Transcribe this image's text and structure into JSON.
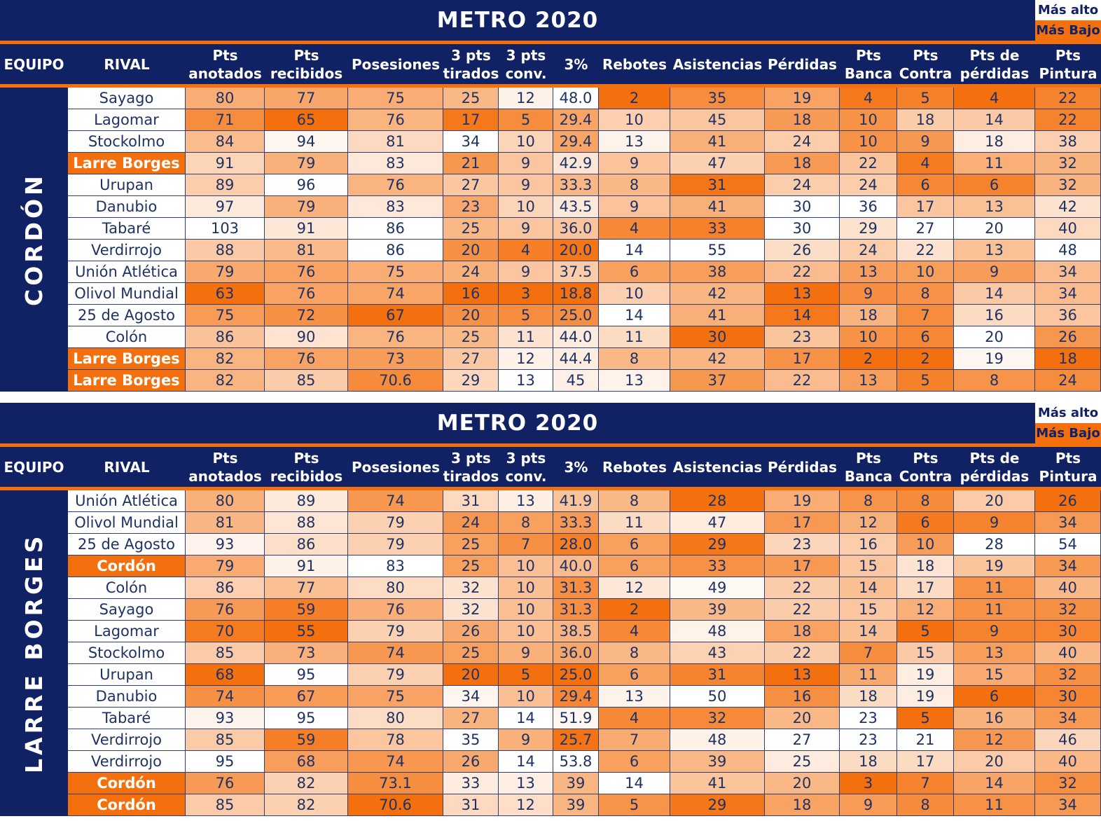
{
  "legend": {
    "highest": "Más alto",
    "lowest": "Más Bajo"
  },
  "colors": {
    "navy": "#112264",
    "orange": "#F4700E",
    "cell_text": "#1E3264",
    "grid": "#2E3F76",
    "scale_low": "#F4700E",
    "scale_high": "#FFFFFF"
  },
  "columns": [
    "EQUIPO",
    "RIVAL",
    "Pts\nanotados",
    "Pts\nrecibidos",
    "Posesiones",
    "3 pts\ntirados",
    "3 pts\nconv.",
    "3%",
    "Rebotes",
    "Asistencias",
    "Pérdidas",
    "Pts\nBanca",
    "Pts\nContra",
    "Pts de\npérdidas",
    "Pts\nPintura"
  ],
  "tables": [
    {
      "title": "METRO 2020",
      "team": "CORDÓN",
      "rows": [
        {
          "rival": "Sayago",
          "hl": false,
          "v": [
            "80",
            "77",
            "75",
            "25",
            "12",
            "48.0",
            "2",
            "35",
            "19",
            "4",
            "5",
            "4",
            "22"
          ]
        },
        {
          "rival": "Lagomar",
          "hl": false,
          "v": [
            "71",
            "65",
            "76",
            "17",
            "5",
            "29.4",
            "10",
            "45",
            "18",
            "10",
            "18",
            "14",
            "22"
          ]
        },
        {
          "rival": "Stockolmo",
          "hl": false,
          "v": [
            "84",
            "94",
            "81",
            "34",
            "10",
            "29.4",
            "13",
            "41",
            "24",
            "10",
            "9",
            "18",
            "38"
          ]
        },
        {
          "rival": "Larre Borges",
          "hl": true,
          "v": [
            "91",
            "79",
            "83",
            "21",
            "9",
            "42.9",
            "9",
            "47",
            "18",
            "22",
            "4",
            "11",
            "32"
          ]
        },
        {
          "rival": "Urupan",
          "hl": false,
          "v": [
            "89",
            "96",
            "76",
            "27",
            "9",
            "33.3",
            "8",
            "31",
            "24",
            "24",
            "6",
            "6",
            "32"
          ]
        },
        {
          "rival": "Danubio",
          "hl": false,
          "v": [
            "97",
            "79",
            "83",
            "23",
            "10",
            "43.5",
            "9",
            "41",
            "30",
            "36",
            "17",
            "13",
            "42"
          ]
        },
        {
          "rival": "Tabaré",
          "hl": false,
          "v": [
            "103",
            "91",
            "86",
            "25",
            "9",
            "36.0",
            "4",
            "33",
            "30",
            "29",
            "27",
            "20",
            "40"
          ]
        },
        {
          "rival": "Verdirrojo",
          "hl": false,
          "v": [
            "88",
            "81",
            "86",
            "20",
            "4",
            "20.0",
            "14",
            "55",
            "26",
            "24",
            "22",
            "13",
            "48"
          ]
        },
        {
          "rival": "Unión Atlética",
          "hl": false,
          "v": [
            "79",
            "76",
            "75",
            "24",
            "9",
            "37.5",
            "6",
            "38",
            "22",
            "13",
            "10",
            "9",
            "34"
          ]
        },
        {
          "rival": "Olivol Mundial",
          "hl": false,
          "v": [
            "63",
            "76",
            "74",
            "16",
            "3",
            "18.8",
            "10",
            "42",
            "13",
            "9",
            "8",
            "14",
            "34"
          ]
        },
        {
          "rival": "25 de Agosto",
          "hl": false,
          "v": [
            "75",
            "72",
            "67",
            "20",
            "5",
            "25.0",
            "14",
            "41",
            "14",
            "18",
            "7",
            "16",
            "36"
          ]
        },
        {
          "rival": "Colón",
          "hl": false,
          "v": [
            "86",
            "90",
            "76",
            "25",
            "11",
            "44.0",
            "11",
            "30",
            "23",
            "10",
            "6",
            "20",
            "26"
          ]
        },
        {
          "rival": "Larre Borges",
          "hl": true,
          "v": [
            "82",
            "76",
            "73",
            "27",
            "12",
            "44.4",
            "8",
            "42",
            "17",
            "2",
            "2",
            "19",
            "18"
          ]
        },
        {
          "rival": "Larre Borges",
          "hl": true,
          "v": [
            "82",
            "85",
            "70.6",
            "29",
            "13",
            "45",
            "13",
            "37",
            "22",
            "13",
            "5",
            "8",
            "24"
          ]
        }
      ]
    },
    {
      "title": "METRO 2020",
      "team": "LARRE BORGES",
      "rows": [
        {
          "rival": "Unión Atlética",
          "hl": false,
          "v": [
            "80",
            "89",
            "74",
            "31",
            "13",
            "41.9",
            "8",
            "28",
            "19",
            "8",
            "8",
            "20",
            "26"
          ]
        },
        {
          "rival": "Olivol Mundial",
          "hl": false,
          "v": [
            "81",
            "88",
            "79",
            "24",
            "8",
            "33.3",
            "11",
            "47",
            "17",
            "12",
            "6",
            "9",
            "34"
          ]
        },
        {
          "rival": "25 de Agosto",
          "hl": false,
          "v": [
            "93",
            "86",
            "79",
            "25",
            "7",
            "28.0",
            "6",
            "29",
            "23",
            "16",
            "10",
            "28",
            "54"
          ]
        },
        {
          "rival": "Cordón",
          "hl": true,
          "v": [
            "79",
            "91",
            "83",
            "25",
            "10",
            "40.0",
            "6",
            "33",
            "17",
            "15",
            "18",
            "19",
            "34"
          ]
        },
        {
          "rival": "Colón",
          "hl": false,
          "v": [
            "86",
            "77",
            "80",
            "32",
            "10",
            "31.3",
            "12",
            "49",
            "22",
            "14",
            "17",
            "11",
            "40"
          ]
        },
        {
          "rival": "Sayago",
          "hl": false,
          "v": [
            "76",
            "59",
            "76",
            "32",
            "10",
            "31.3",
            "2",
            "39",
            "22",
            "15",
            "12",
            "11",
            "32"
          ]
        },
        {
          "rival": "Lagomar",
          "hl": false,
          "v": [
            "70",
            "55",
            "79",
            "26",
            "10",
            "38.5",
            "4",
            "48",
            "18",
            "14",
            "5",
            "9",
            "30"
          ]
        },
        {
          "rival": "Stockolmo",
          "hl": false,
          "v": [
            "85",
            "73",
            "74",
            "25",
            "9",
            "36.0",
            "8",
            "43",
            "22",
            "7",
            "15",
            "13",
            "40"
          ]
        },
        {
          "rival": "Urupan",
          "hl": false,
          "v": [
            "68",
            "95",
            "79",
            "20",
            "5",
            "25.0",
            "6",
            "31",
            "13",
            "11",
            "19",
            "15",
            "32"
          ]
        },
        {
          "rival": "Danubio",
          "hl": false,
          "v": [
            "74",
            "67",
            "75",
            "34",
            "10",
            "29.4",
            "13",
            "50",
            "16",
            "18",
            "19",
            "6",
            "30"
          ]
        },
        {
          "rival": "Tabaré",
          "hl": false,
          "v": [
            "93",
            "95",
            "80",
            "27",
            "14",
            "51.9",
            "4",
            "32",
            "20",
            "23",
            "5",
            "16",
            "34"
          ]
        },
        {
          "rival": "Verdirrojo",
          "hl": false,
          "v": [
            "85",
            "59",
            "78",
            "35",
            "9",
            "25.7",
            "7",
            "48",
            "27",
            "23",
            "21",
            "12",
            "46"
          ]
        },
        {
          "rival": "Verdirrojo",
          "hl": false,
          "v": [
            "95",
            "68",
            "74",
            "26",
            "14",
            "53.8",
            "6",
            "39",
            "25",
            "18",
            "17",
            "20",
            "40"
          ]
        },
        {
          "rival": "Cordón",
          "hl": true,
          "v": [
            "76",
            "82",
            "73.1",
            "33",
            "13",
            "39",
            "14",
            "41",
            "20",
            "3",
            "7",
            "14",
            "32"
          ]
        },
        {
          "rival": "Cordón",
          "hl": true,
          "v": [
            "85",
            "82",
            "70.6",
            "31",
            "12",
            "39",
            "5",
            "29",
            "18",
            "9",
            "8",
            "11",
            "34"
          ]
        }
      ]
    }
  ]
}
